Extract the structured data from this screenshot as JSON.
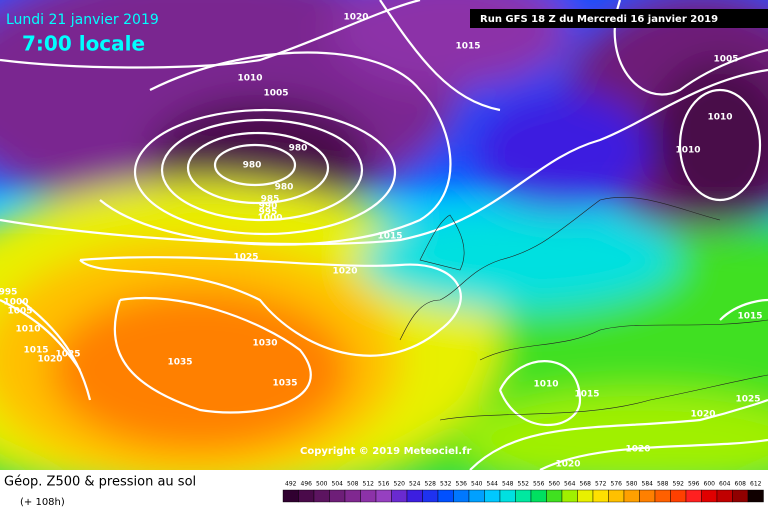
{
  "header": {
    "date": "Lundi 21 janvier 2019",
    "time": "7:00 locale",
    "run": "Run GFS 18 Z du Mercredi 16 janvier 2019"
  },
  "copyright": "Copyright © 2019 Meteociel.fr",
  "footer": {
    "title": "Géop. Z500 & pression au sol",
    "lead": "(+ 108h)"
  },
  "isobar_labels": [
    "1020",
    "1015",
    "1005",
    "1010",
    "1005",
    "1010",
    "980",
    "980",
    "980",
    "1010",
    "985",
    "990",
    "995",
    "1000",
    "1015",
    "1025",
    "1020",
    "1030",
    "1035",
    "1035",
    "1010",
    "1015",
    "1025",
    "1020",
    "1020",
    "1020",
    "1015",
    "995",
    "1000",
    "1005",
    "1010",
    "1015",
    "1025",
    "1020"
  ],
  "scale": {
    "values": [
      492,
      496,
      500,
      504,
      508,
      512,
      516,
      520,
      524,
      528,
      532,
      536,
      540,
      544,
      548,
      552,
      556,
      560,
      564,
      568,
      572,
      576,
      580,
      584,
      588,
      592,
      596,
      600,
      604,
      608,
      612
    ],
    "colors": [
      "#300030",
      "#4a0a4a",
      "#5c1460",
      "#6e1e78",
      "#802890",
      "#8c32a8",
      "#9640c0",
      "#6a2ad0",
      "#3c1ee0",
      "#1e32f0",
      "#0050ff",
      "#0078ff",
      "#00a0ff",
      "#00c8ff",
      "#00e0e0",
      "#00e8a0",
      "#00e060",
      "#40e020",
      "#a0f000",
      "#e8f000",
      "#ffe000",
      "#ffc000",
      "#ffa000",
      "#ff8000",
      "#ff6000",
      "#ff4000",
      "#ff2020",
      "#e00000",
      "#c00000",
      "#900000",
      "#100000"
    ]
  }
}
